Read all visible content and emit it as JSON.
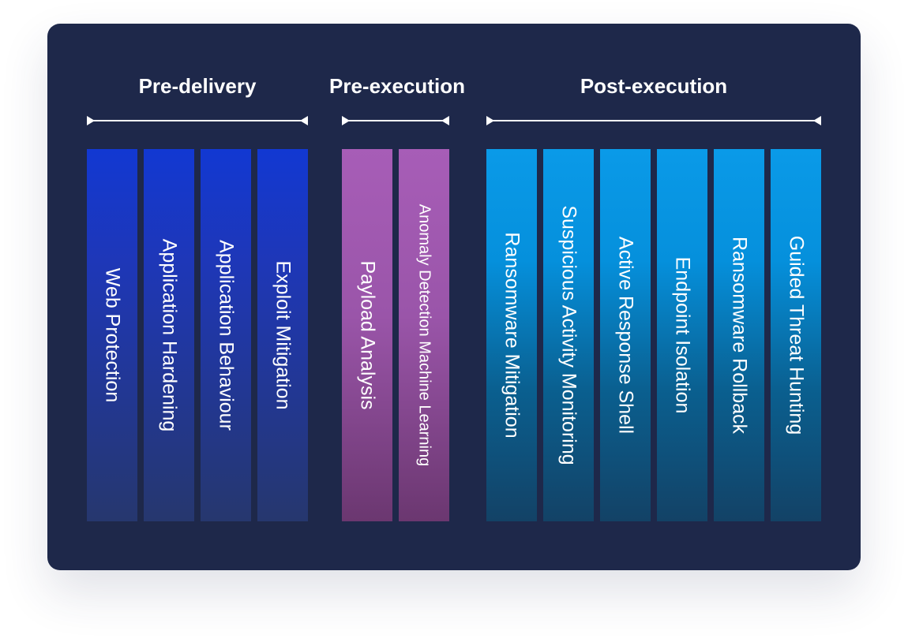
{
  "phases": {
    "pre_delivery": {
      "title": "Pre-delivery",
      "items": [
        "Web Protection",
        "Application Hardening",
        "Application Behaviour",
        "Exploit Mitigation"
      ],
      "color": "#1238d2"
    },
    "pre_execution": {
      "title": "Pre-execution",
      "items": [
        "Payload Analysis",
        "Anomaly Detection Machine Learning"
      ],
      "color": "#a75db7"
    },
    "post_execution": {
      "title": "Post-execution",
      "items": [
        "Ransomware Mitigation",
        "Suspicious Activity Monitoring",
        "Active Response Shell",
        "Endpoint Isolation",
        "Ransomware Rollback",
        "Guided Threat Hunting"
      ],
      "color": "#0a9ae8"
    }
  },
  "background_color": "#1e284a"
}
